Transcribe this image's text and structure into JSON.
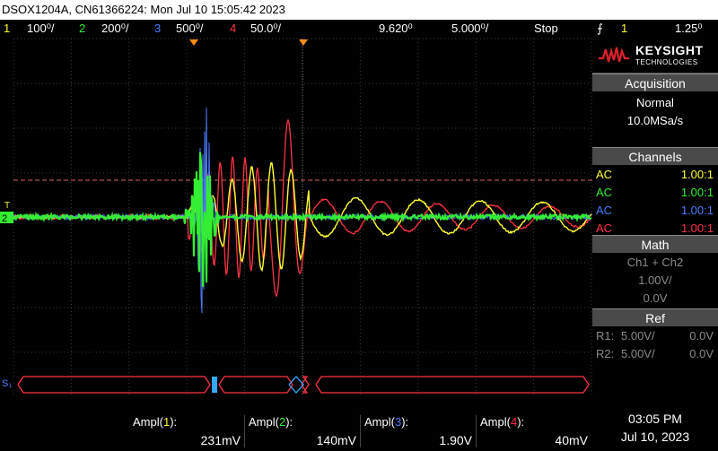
{
  "title_bar": {
    "text": "DSOX1204A, CN61366224: Mon Jul 10 15:05:42 2023"
  },
  "status_bar": {
    "channels": [
      {
        "num": "1",
        "scale": "100⁰/",
        "color": "#ffff33"
      },
      {
        "num": "2",
        "scale": "200⁰/",
        "color": "#33ee33"
      },
      {
        "num": "3",
        "scale": "500⁰/",
        "color": "#4d7dff"
      },
      {
        "num": "4",
        "scale": "50.0⁰/",
        "color": "#ff3344"
      }
    ],
    "time_offset": "9.620⁰",
    "time_scale": "5.000⁰/",
    "run_state": "Stop",
    "trigger_symbol": "⨍",
    "trigger_channel": "1",
    "trigger_level": "1.25⁰"
  },
  "panel": {
    "brand": "KEYSIGHT",
    "brand_sub": "TECHNOLOGIES",
    "acquisition": {
      "header": "Acquisition",
      "mode": "Normal",
      "rate": "10.0MSa/s"
    },
    "channels": {
      "header": "Channels",
      "rows": [
        {
          "coupling": "AC",
          "probe": "1.00:1",
          "color": "#ffff33"
        },
        {
          "coupling": "AC",
          "probe": "1.00:1",
          "color": "#33ee33"
        },
        {
          "coupling": "AC",
          "probe": "1.00:1",
          "color": "#4d7dff"
        },
        {
          "coupling": "AC",
          "probe": "1.00:1",
          "color": "#ff3344"
        }
      ]
    },
    "math": {
      "header": "Math",
      "function": "Ch1 + Ch2",
      "scale": "1.00V/",
      "offset": "0.0V"
    },
    "ref": {
      "header": "Ref",
      "rows": [
        {
          "label": "R1:",
          "scale": "5.00V/",
          "offset": "0.0V"
        },
        {
          "label": "R2:",
          "scale": "5.00V/",
          "offset": "0.0V"
        }
      ]
    }
  },
  "screen": {
    "ground_marker": "2",
    "trigger_level_marker": "T",
    "serial_label": "S₁"
  },
  "measurements": [
    {
      "label": "Ampl(1):",
      "value": "231mV",
      "color": "#ffff33",
      "ch": "1"
    },
    {
      "label": "Ampl(2):",
      "value": "140mV",
      "color": "#33ee33",
      "ch": "2"
    },
    {
      "label": "Ampl(3):",
      "value": "1.90V",
      "color": "#4d7dff",
      "ch": "3"
    },
    {
      "label": "Ampl(4):",
      "value": "40mV",
      "color": "#ff3344",
      "ch": "4"
    }
  ],
  "clock": {
    "time": "03:05 PM",
    "date": "Jul 10, 2023"
  }
}
